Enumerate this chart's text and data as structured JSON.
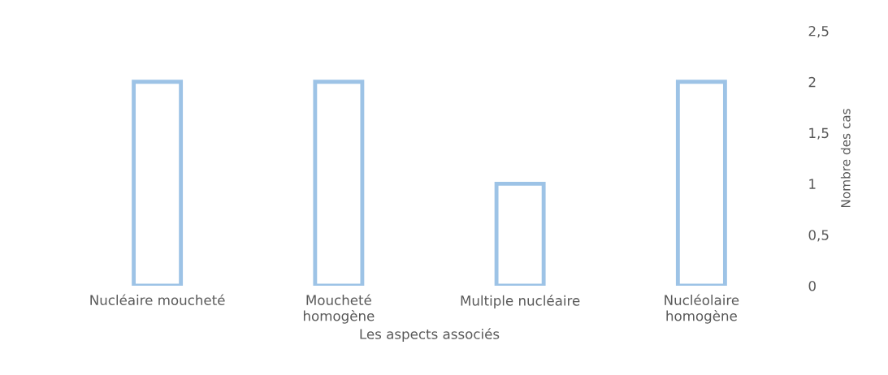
{
  "chart_data": {
    "type": "bar",
    "xlabel": "Les aspects associés",
    "ylabel": "Nombre des cas",
    "categories": [
      "Nucléaire moucheté",
      "Moucheté\nhomogène",
      "Multiple nucléaire",
      "Nucléolaire\nhomogène"
    ],
    "values": [
      2,
      2,
      1,
      2
    ],
    "color": "#9dc3e6",
    "ylim": [
      0,
      2.5
    ],
    "yticks": [
      0,
      {
        "value": 0.5,
        "label": "0,5"
      },
      1,
      {
        "value": 1.5,
        "label": "1,5"
      },
      2,
      {
        "value": 2.5,
        "label": "2,5"
      }
    ],
    "grid": false,
    "legend": false
  }
}
